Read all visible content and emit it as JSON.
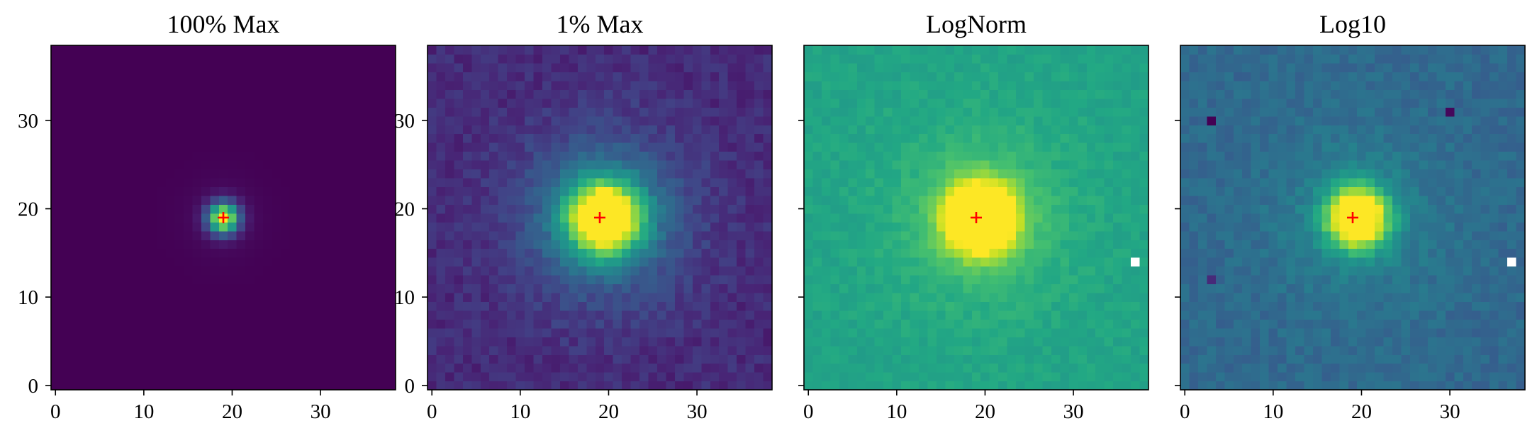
{
  "chart_data": [
    {
      "type": "heatmap",
      "title": "100% Max",
      "x_ticks": [
        0,
        10,
        20,
        30
      ],
      "y_ticks": [
        0,
        10,
        20,
        30
      ],
      "xlim": [
        -0.5,
        38.5
      ],
      "ylim": [
        -0.5,
        38.5
      ],
      "grid_size": [
        39,
        39
      ],
      "colormap": "viridis",
      "scaling": "linear",
      "background_level": 0.0,
      "source": {
        "x": 19,
        "y": 19,
        "peak": 1.0,
        "sigma": 1.2,
        "halo_amp": 0.04,
        "halo_sigma": 3.0
      },
      "noise": 0.0,
      "marker": {
        "symbol": "+",
        "x": 19,
        "y": 19,
        "color": "#ff0000"
      },
      "dead_pixels": []
    },
    {
      "type": "heatmap",
      "title": "1% Max",
      "x_ticks": [
        0,
        10,
        20,
        30
      ],
      "y_ticks": [
        0,
        10,
        20,
        30
      ],
      "xlim": [
        -0.5,
        38.5
      ],
      "ylim": [
        -0.5,
        38.5
      ],
      "grid_size": [
        39,
        39
      ],
      "colormap": "viridis",
      "scaling": "clipped-linear",
      "background_level": 0.12,
      "source": {
        "x": 19.5,
        "y": 19,
        "peak": 1.0,
        "sigma": 2.8,
        "halo_amp": 0.32,
        "halo_sigma": 6.5
      },
      "noise": 0.05,
      "marker": {
        "symbol": "+",
        "x": 19,
        "y": 19,
        "color": "#ff0000"
      },
      "dead_pixels": []
    },
    {
      "type": "heatmap",
      "title": "LogNorm",
      "x_ticks": [
        0,
        10,
        20,
        30
      ],
      "y_ticks": [],
      "xlim": [
        -0.5,
        38.5
      ],
      "ylim": [
        -0.5,
        38.5
      ],
      "grid_size": [
        39,
        39
      ],
      "colormap": "viridis",
      "scaling": "log",
      "background_level": 0.58,
      "source": {
        "x": 19.5,
        "y": 19,
        "peak": 0.98,
        "sigma": 2.6,
        "halo_amp": 0.14,
        "halo_sigma": 7.0
      },
      "noise": 0.035,
      "marker": {
        "symbol": "+",
        "x": 19,
        "y": 19,
        "color": "#ff0000"
      },
      "dead_pixels": [
        {
          "x": 37,
          "y": 14
        }
      ]
    },
    {
      "type": "heatmap",
      "title": "Log10",
      "x_ticks": [
        0,
        10,
        20,
        30
      ],
      "y_ticks": [],
      "xlim": [
        -0.5,
        38.5
      ],
      "ylim": [
        -0.5,
        38.5
      ],
      "grid_size": [
        39,
        39
      ],
      "colormap": "viridis",
      "scaling": "log",
      "background_level": 0.34,
      "source": {
        "x": 19.5,
        "y": 19,
        "peak": 0.98,
        "sigma": 2.3,
        "halo_amp": 0.12,
        "halo_sigma": 6.5
      },
      "noise": 0.045,
      "marker": {
        "symbol": "+",
        "x": 19,
        "y": 19,
        "color": "#ff0000"
      },
      "dead_pixels": [
        {
          "x": 37,
          "y": 14
        }
      ],
      "hot_pixels": [
        {
          "x": 3,
          "y": 30,
          "v": 0.0
        },
        {
          "x": 30,
          "y": 31,
          "v": 0.02
        },
        {
          "x": 3,
          "y": 12,
          "v": 0.12
        }
      ]
    }
  ]
}
